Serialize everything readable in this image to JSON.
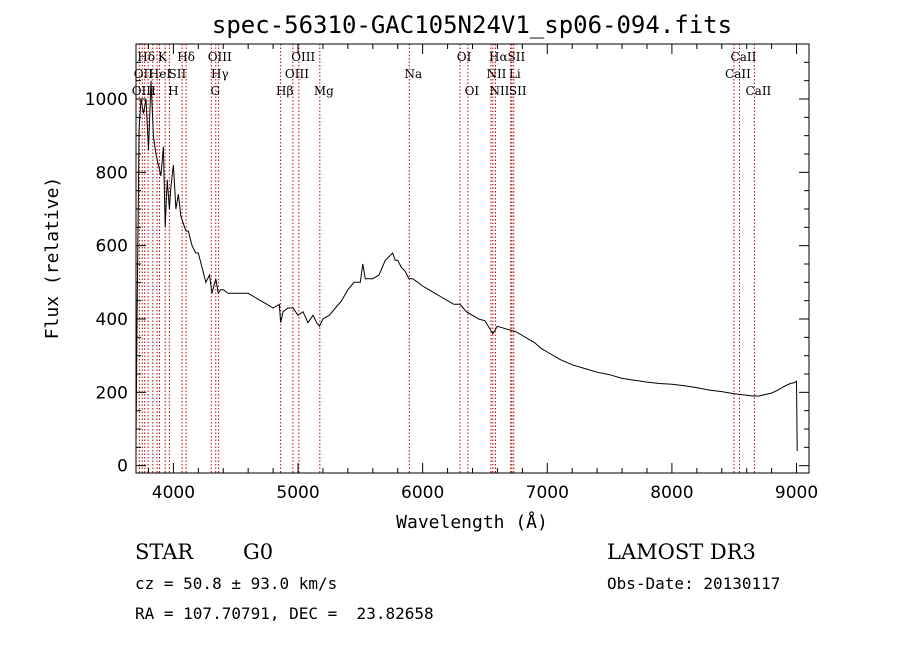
{
  "chart_data": {
    "type": "line",
    "title": "spec-56310-GAC105N24V1_sp06-094.fits",
    "xlabel": "Wavelength (Å)",
    "ylabel": "Flux (relative)",
    "xlim": [
      3700,
      9100
    ],
    "ylim": [
      -20,
      1150
    ],
    "xticks": [
      4000,
      5000,
      6000,
      7000,
      8000,
      9000
    ],
    "xtick_labels": [
      "4000",
      "5000",
      "6000",
      "7000",
      "8000",
      "9000"
    ],
    "yticks": [
      0,
      200,
      400,
      600,
      800,
      1000
    ],
    "ytick_labels": [
      "0",
      "200",
      "400",
      "600",
      "800",
      "1000"
    ],
    "series": [
      {
        "name": "spectrum",
        "color": "#000000",
        "x": [
          3700,
          3710,
          3725,
          3740,
          3760,
          3780,
          3800,
          3820,
          3840,
          3860,
          3880,
          3900,
          3920,
          3934,
          3950,
          3968,
          3980,
          4000,
          4020,
          4040,
          4060,
          4080,
          4100,
          4120,
          4150,
          4180,
          4200,
          4230,
          4260,
          4290,
          4310,
          4340,
          4360,
          4380,
          4400,
          4440,
          4500,
          4550,
          4600,
          4650,
          4700,
          4750,
          4800,
          4850,
          4861,
          4880,
          4920,
          4960,
          5000,
          5040,
          5080,
          5120,
          5150,
          5172,
          5200,
          5250,
          5300,
          5350,
          5400,
          5450,
          5500,
          5520,
          5540,
          5560,
          5600,
          5650,
          5700,
          5730,
          5760,
          5780,
          5800,
          5830,
          5860,
          5890,
          5920,
          5960,
          6000,
          6050,
          6100,
          6150,
          6200,
          6250,
          6300,
          6350,
          6400,
          6450,
          6500,
          6563,
          6600,
          6650,
          6700,
          6750,
          6800,
          6850,
          6900,
          6950,
          7000,
          7100,
          7200,
          7300,
          7400,
          7500,
          7600,
          7700,
          7800,
          7900,
          8000,
          8100,
          8200,
          8300,
          8400,
          8500,
          8550,
          8600,
          8650,
          8700,
          8750,
          8800,
          8850,
          8900,
          8950,
          8980,
          9000,
          9005
        ],
        "values": [
          60,
          440,
          920,
          1000,
          960,
          1000,
          860,
          1050,
          900,
          850,
          820,
          790,
          870,
          650,
          780,
          700,
          760,
          820,
          700,
          740,
          680,
          660,
          640,
          640,
          600,
          580,
          580,
          540,
          500,
          520,
          470,
          510,
          470,
          480,
          480,
          470,
          470,
          470,
          470,
          460,
          450,
          440,
          430,
          440,
          390,
          420,
          430,
          430,
          410,
          420,
          390,
          410,
          390,
          380,
          400,
          410,
          430,
          450,
          480,
          500,
          500,
          550,
          510,
          510,
          510,
          520,
          560,
          570,
          580,
          560,
          560,
          540,
          530,
          510,
          510,
          500,
          490,
          480,
          470,
          460,
          450,
          440,
          440,
          420,
          410,
          400,
          395,
          360,
          380,
          375,
          370,
          365,
          355,
          345,
          335,
          320,
          310,
          290,
          275,
          265,
          255,
          248,
          238,
          233,
          228,
          224,
          222,
          218,
          213,
          206,
          202,
          196,
          194,
          192,
          190,
          190,
          194,
          198,
          206,
          216,
          224,
          226,
          230,
          40
        ]
      }
    ],
    "spectral_lines": [
      {
        "name": "Hδ",
        "wavelength": 3750,
        "row": 1
      },
      {
        "name": "K",
        "wavelength": 3880,
        "row": 1
      },
      {
        "name": "Hδ",
        "wavelength": 4070,
        "row": 1
      },
      {
        "name": "OIII",
        "wavelength": 4340,
        "row": 1
      },
      {
        "name": "OIII",
        "wavelength": 5010,
        "row": 1
      },
      {
        "name": "OI",
        "wavelength": 6300,
        "row": 1
      },
      {
        "name": "Hα",
        "wavelength": 6575,
        "row": 1
      },
      {
        "name": "SII",
        "wavelength": 6720,
        "row": 1
      },
      {
        "name": "CaII",
        "wavelength": 8542,
        "row": 1
      },
      {
        "name": "OII",
        "wavelength": 3727,
        "row": 2
      },
      {
        "name": "HeI",
        "wavelength": 3860,
        "row": 2
      },
      {
        "name": "SII",
        "wavelength": 4000,
        "row": 2
      },
      {
        "name": "Hγ",
        "wavelength": 4340,
        "row": 2
      },
      {
        "name": "OIII",
        "wavelength": 4959,
        "row": 2
      },
      {
        "name": "Na",
        "wavelength": 5893,
        "row": 2
      },
      {
        "name": "NII",
        "wavelength": 6560,
        "row": 2
      },
      {
        "name": "Li",
        "wavelength": 6707,
        "row": 2
      },
      {
        "name": "CaII",
        "wavelength": 8498,
        "row": 2
      },
      {
        "name": "OIII",
        "wavelength": 3730,
        "row": 3
      },
      {
        "name": "ε",
        "wavelength": 3800,
        "row": 3
      },
      {
        "name": "H",
        "wavelength": 3968,
        "row": 3
      },
      {
        "name": "G",
        "wavelength": 4304,
        "row": 3
      },
      {
        "name": "Hβ",
        "wavelength": 4861,
        "row": 3
      },
      {
        "name": "Mg",
        "wavelength": 5175,
        "row": 3
      },
      {
        "name": "OI",
        "wavelength": 6363,
        "row": 3
      },
      {
        "name": "NII",
        "wavelength": 6584,
        "row": 3
      },
      {
        "name": "SII",
        "wavelength": 6731,
        "row": 3
      },
      {
        "name": "CaII",
        "wavelength": 8662,
        "row": 3
      }
    ],
    "marker_lines": [
      3727,
      3750,
      3770,
      3797,
      3835,
      3869,
      3889,
      3934,
      3968,
      4070,
      4102,
      4304,
      4340,
      4363,
      4861,
      4959,
      5007,
      5175,
      5893,
      6300,
      6363,
      6548,
      6563,
      6584,
      6707,
      6716,
      6731,
      8498,
      8542,
      8662
    ],
    "marker_color": "#c00000"
  },
  "footer": {
    "object_class": "STAR",
    "subclass": "G0",
    "survey": "LAMOST DR3",
    "redshift": "cz = 50.8 ± 93.0 km/s",
    "obs_date": "Obs-Date: 20130117",
    "coords": "RA = 107.70791, DEC =  23.82658"
  }
}
